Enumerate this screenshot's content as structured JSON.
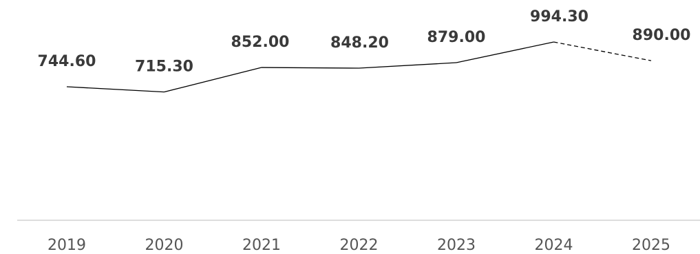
{
  "chart_data": {
    "type": "line",
    "categories": [
      "2019",
      "2020",
      "2021",
      "2022",
      "2023",
      "2024",
      "2025"
    ],
    "values": [
      744.6,
      715.3,
      852.0,
      848.2,
      879.0,
      994.3,
      890.0
    ],
    "data_labels": [
      "744.60",
      "715.30",
      "852.00",
      "848.20",
      "879.00",
      "994.30",
      "890.00"
    ],
    "projected_from_index": 5,
    "title": "",
    "xlabel": "",
    "ylabel": "",
    "grid": false,
    "legend": "none",
    "colors": {
      "line": "#000000",
      "labels": "#3a3a3a",
      "ticks": "#555555",
      "axis": "#dddddd"
    }
  }
}
